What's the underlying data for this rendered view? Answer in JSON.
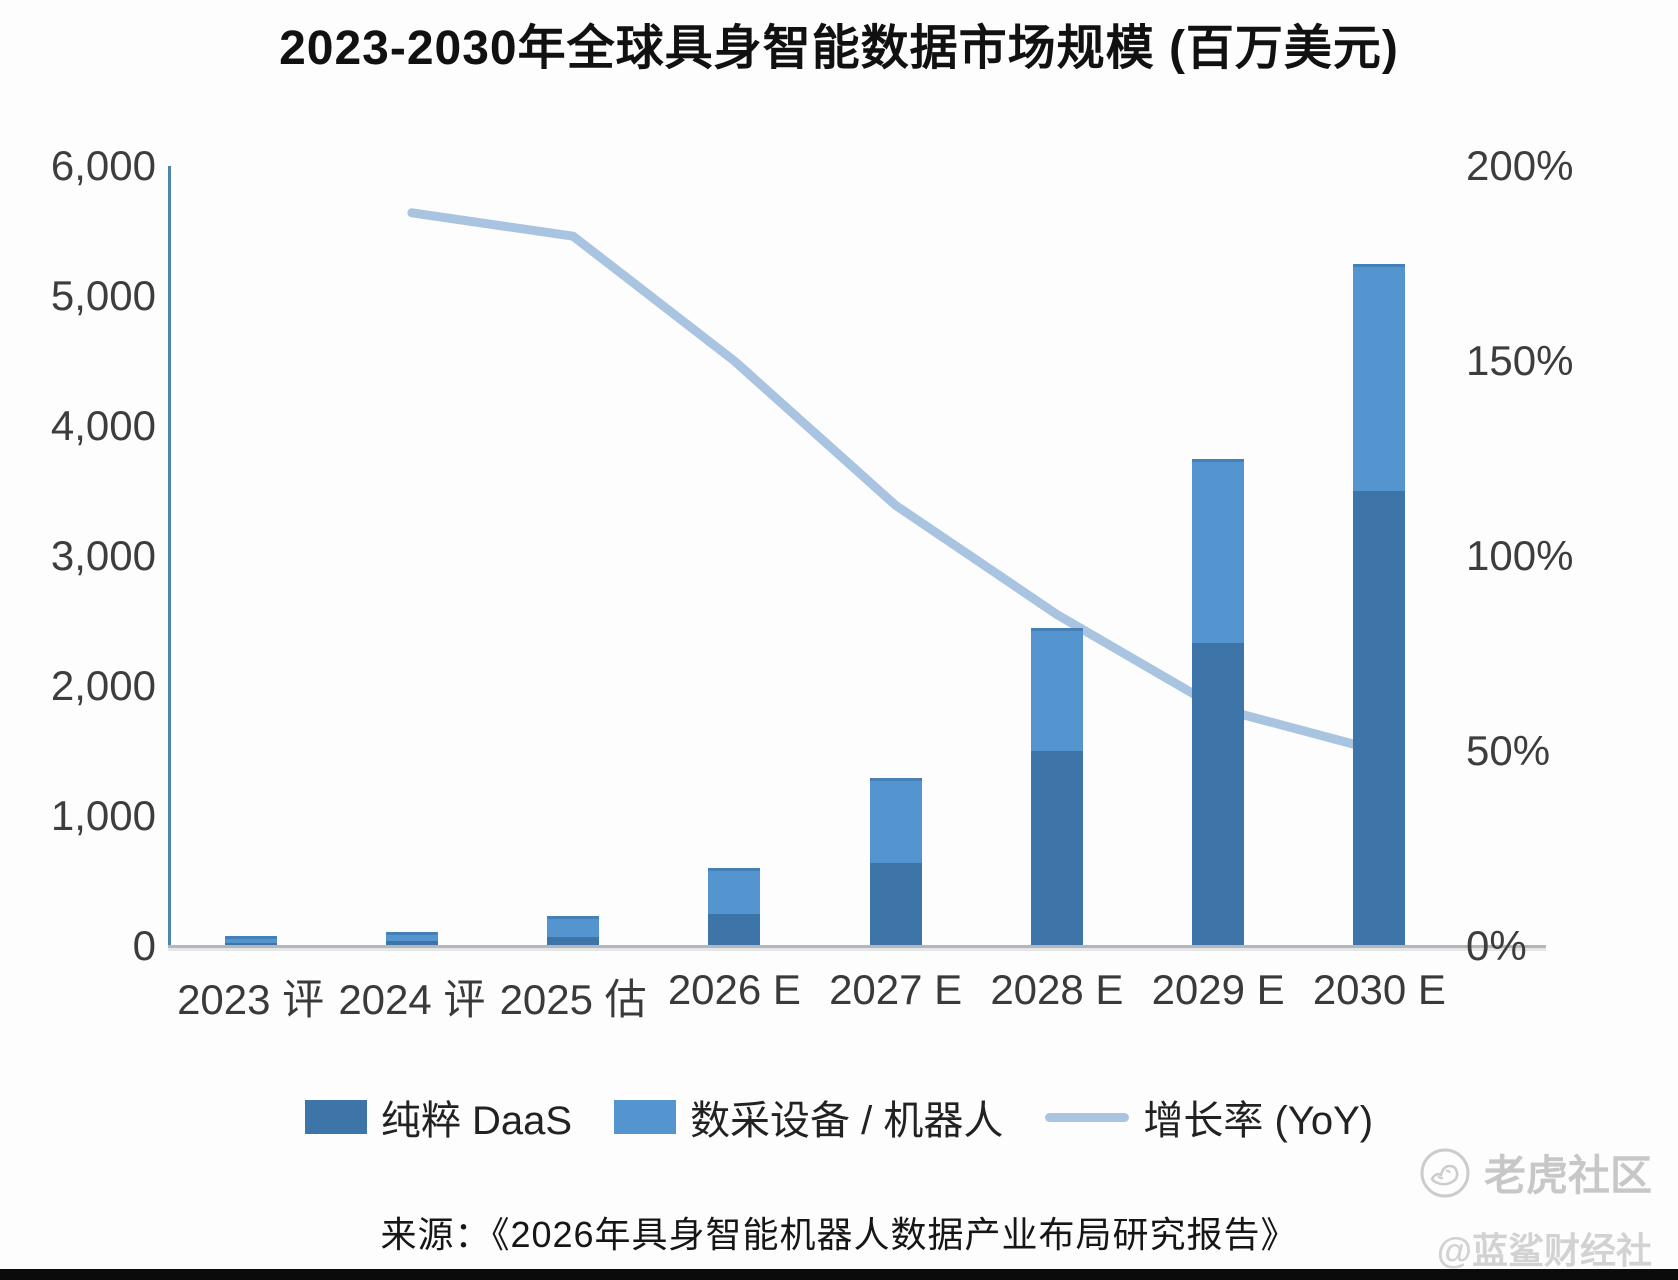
{
  "title": "2023-2030年全球具身智能数据市场规模 (百万美元)",
  "source": "来源：《2026年具身智能机器人数据产业布局研究报告》",
  "watermark": {
    "community": "老虎社区",
    "handle": "@蓝鲨财经社",
    "logo": "tiger-circle-sketch"
  },
  "colors": {
    "daas_bar": "#3d75a8",
    "equipment_bar": "#5494cf",
    "yoy_line": "#a9c4e0",
    "left_axis_line": "#4d86a8",
    "baseline": "#b3b6ba",
    "tick_text": "#3d3d3d"
  },
  "chart_data": {
    "type": "bar",
    "subtype": "stacked-bars-with-line",
    "title": "2023-2030年全球具身智能数据市场规模 (百万美元)",
    "categories": [
      "2023 评",
      "2024 评",
      "2025 估",
      "2026 E",
      "2027 E",
      "2028 E",
      "2029 E",
      "2030 E"
    ],
    "series": [
      {
        "name": "纯粹 DaaS",
        "type": "bar",
        "stack": "market",
        "color": "#3d75a8",
        "values": [
          25,
          40,
          70,
          250,
          640,
          1500,
          2330,
          3500
        ]
      },
      {
        "name": "数采设备 / 机器人",
        "type": "bar",
        "stack": "market",
        "color": "#5494cf",
        "values": [
          55,
          70,
          160,
          350,
          650,
          950,
          1420,
          1750
        ]
      },
      {
        "name": "增长率 (YoY)",
        "type": "line",
        "axis": "right",
        "color": "#a9c4e0",
        "values_percent": [
          null,
          188,
          182,
          150,
          113,
          85,
          61,
          50
        ]
      }
    ],
    "stack_totals": [
      80,
      110,
      230,
      600,
      1290,
      2450,
      3750,
      5250
    ],
    "left_axis": {
      "min": 0,
      "max": 6000,
      "ticks": [
        {
          "v": 6000,
          "label": "6,000"
        },
        {
          "v": 5000,
          "label": "5,000"
        },
        {
          "v": 4000,
          "label": "4,000"
        },
        {
          "v": 3000,
          "label": "3,000"
        },
        {
          "v": 2000,
          "label": "2,000"
        },
        {
          "v": 1000,
          "label": "1,000"
        },
        {
          "v": 0,
          "label": "0"
        }
      ]
    },
    "right_axis": {
      "min": 0,
      "max": 200,
      "unit": "%",
      "ticks": [
        {
          "v": 200,
          "label": "200%"
        },
        {
          "v": 150,
          "label": "150%"
        },
        {
          "v": 100,
          "label": "100%"
        },
        {
          "v": 50,
          "label": "50%"
        },
        {
          "v": 0,
          "label": "0%"
        }
      ]
    },
    "grid": false,
    "legend_position": "bottom"
  }
}
